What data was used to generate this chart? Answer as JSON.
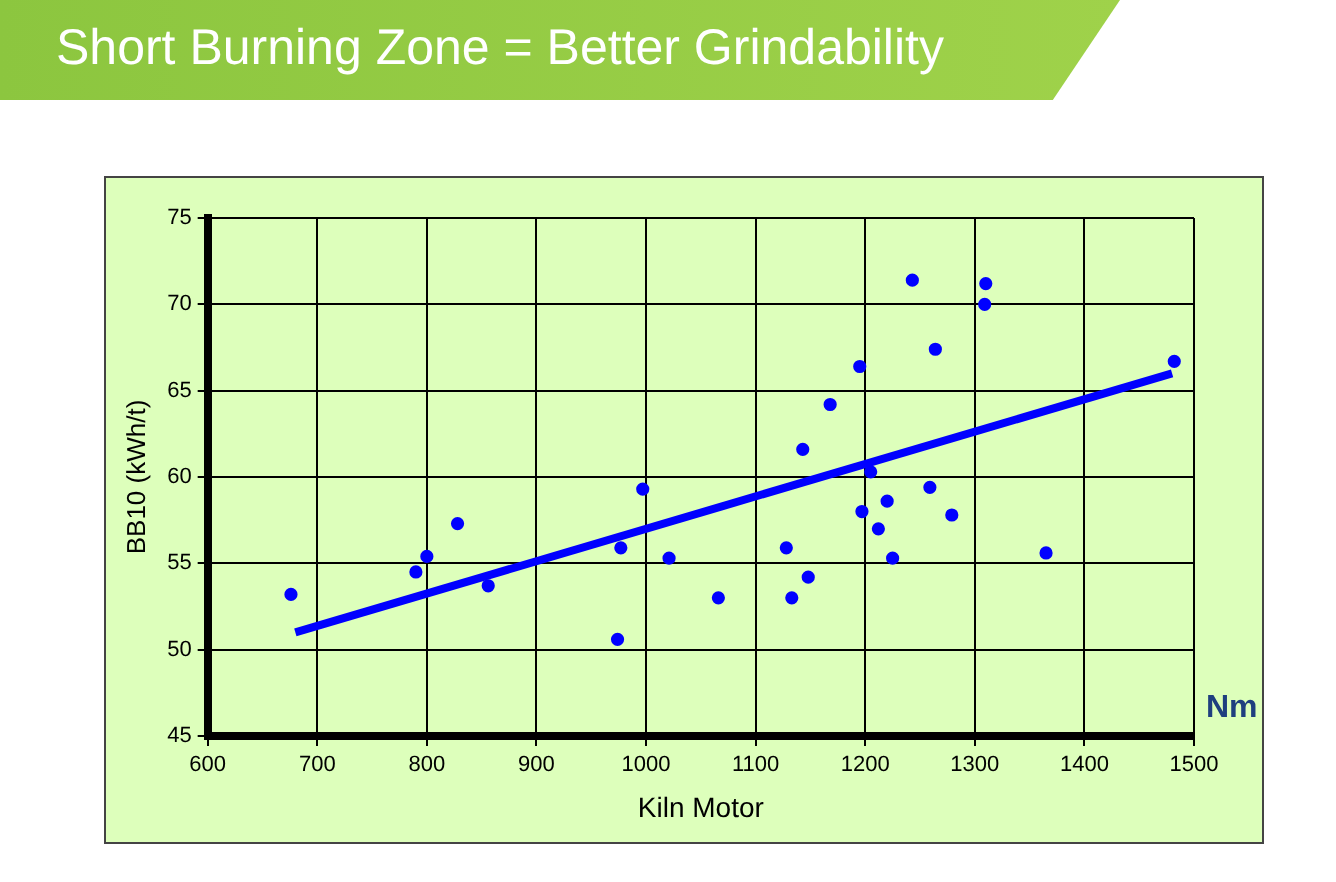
{
  "chart_data": {
    "type": "scatter",
    "title": "Short Burning Zone = Better Grindability",
    "xlabel": "Kiln Motor",
    "ylabel": "BB10 (kWh/t)",
    "annotations": [
      "Nm"
    ],
    "series": [
      {
        "type": "scatter",
        "marker": "circle",
        "color": "#0000ff",
        "x": [
          676,
          790,
          800,
          828,
          856,
          974,
          977,
          997,
          1021,
          1066,
          1128,
          1133,
          1143,
          1148,
          1168,
          1195,
          1197,
          1205,
          1212,
          1220,
          1225,
          1243,
          1259,
          1264,
          1279,
          1309,
          1310,
          1365,
          1482
        ],
        "values": [
          53.2,
          54.5,
          55.4,
          57.3,
          53.7,
          50.6,
          55.9,
          59.3,
          55.3,
          53.0,
          55.9,
          53.0,
          61.6,
          54.2,
          64.2,
          66.4,
          58.0,
          60.3,
          57.0,
          58.6,
          55.3,
          71.4,
          59.4,
          67.4,
          57.8,
          70.0,
          71.2,
          55.6,
          66.7
        ]
      },
      {
        "type": "line",
        "marker": "none",
        "color": "#0000ff",
        "x": [
          680,
          1480
        ],
        "values": [
          51.0,
          66.0
        ]
      }
    ],
    "xlim": [
      600,
      1500
    ],
    "xticks": [
      600,
      700,
      800,
      900,
      1000,
      1100,
      1200,
      1300,
      1400,
      1500
    ],
    "ylim": [
      45,
      75
    ],
    "yticks": [
      45,
      50,
      55,
      60,
      65,
      70,
      75
    ],
    "grid": true,
    "legend": false
  }
}
